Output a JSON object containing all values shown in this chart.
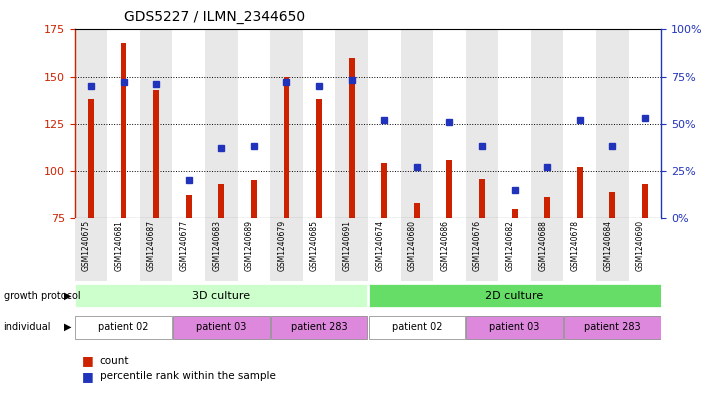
{
  "title": "GDS5227 / ILMN_2344650",
  "samples": [
    "GSM1240675",
    "GSM1240681",
    "GSM1240687",
    "GSM1240677",
    "GSM1240683",
    "GSM1240689",
    "GSM1240679",
    "GSM1240685",
    "GSM1240691",
    "GSM1240674",
    "GSM1240680",
    "GSM1240686",
    "GSM1240676",
    "GSM1240682",
    "GSM1240688",
    "GSM1240678",
    "GSM1240684",
    "GSM1240690"
  ],
  "counts": [
    138,
    168,
    143,
    87,
    93,
    95,
    150,
    138,
    160,
    104,
    83,
    106,
    96,
    80,
    86,
    102,
    89,
    93
  ],
  "percentiles": [
    70,
    72,
    71,
    20,
    37,
    38,
    72,
    70,
    73,
    52,
    27,
    51,
    38,
    15,
    27,
    52,
    38,
    53
  ],
  "y_min": 75,
  "y_max": 175,
  "y_ticks_left": [
    75,
    100,
    125,
    150,
    175
  ],
  "y_ticks_right": [
    0,
    25,
    50,
    75,
    100
  ],
  "bar_color": "#cc2200",
  "dot_color": "#2233bb",
  "col_bg_even": "#e8e8e8",
  "col_bg_odd": "#ffffff",
  "growth_color_3d": "#ccffcc",
  "growth_color_2d": "#66dd66",
  "growth_protocol_3d": "3D culture",
  "growth_protocol_2d": "2D culture",
  "ind_colors": [
    "#ffffff",
    "#dd88dd",
    "#dd88dd",
    "#ffffff",
    "#dd88dd",
    "#dd88dd"
  ],
  "ind_labels": [
    "patient 02",
    "patient 03",
    "patient 283",
    "patient 02",
    "patient 03",
    "patient 283"
  ],
  "ind_starts": [
    0,
    3,
    6,
    9,
    12,
    15
  ],
  "ind_ends": [
    3,
    6,
    9,
    12,
    15,
    18
  ],
  "legend_count_color": "#cc2200",
  "legend_dot_color": "#2233bb"
}
